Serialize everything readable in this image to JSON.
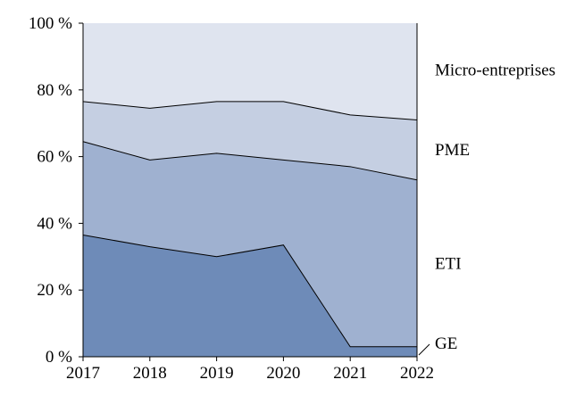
{
  "chart_data": {
    "type": "area",
    "stacked": true,
    "x": [
      "2017",
      "2018",
      "2019",
      "2020",
      "2021",
      "2022"
    ],
    "ylim": [
      0,
      100
    ],
    "yticks": [
      0,
      20,
      40,
      60,
      80,
      100
    ],
    "ytick_labels": [
      "0 %",
      "20 %",
      "40 %",
      "60 %",
      "80 %",
      "100 %"
    ],
    "cumulative_boundaries": {
      "GE": [
        36.5,
        33,
        30,
        33.5,
        3,
        3
      ],
      "ETI": [
        64.5,
        59,
        61,
        59,
        57,
        53
      ],
      "PME": [
        76.5,
        74.5,
        76.5,
        76.5,
        72.5,
        71
      ],
      "Micro-entreprises": [
        100,
        100,
        100,
        100,
        100,
        100
      ]
    },
    "series": [
      {
        "name": "GE",
        "values": [
          36.5,
          33,
          30,
          33.5,
          3,
          3
        ],
        "color": "#6e8bb8"
      },
      {
        "name": "ETI",
        "values": [
          28,
          26,
          31,
          25.5,
          54,
          50
        ],
        "color": "#9fb1d0"
      },
      {
        "name": "PME",
        "values": [
          12,
          15.5,
          15.5,
          17.5,
          15.5,
          18
        ],
        "color": "#c5cfe2"
      },
      {
        "name": "Micro-entreprises",
        "values": [
          23.5,
          25.5,
          23.5,
          23.5,
          27.5,
          29
        ],
        "color": "#dfe4ef"
      }
    ],
    "grid": false,
    "legend": "direct labels right"
  }
}
